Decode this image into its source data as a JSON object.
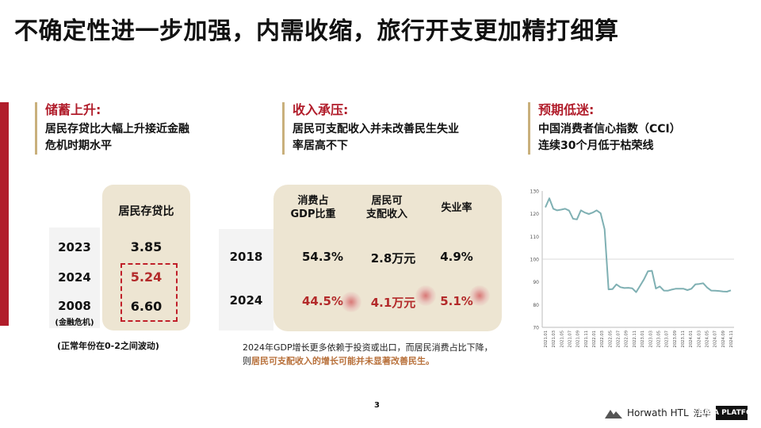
{
  "title": "不确定性进一步加强，内需收缩，旅行开支更加精打细算",
  "sections": [
    {
      "title": "储蓄上升:",
      "body": [
        "居民存贷比大幅上升接近金融",
        "危机时期水平"
      ],
      "table": {
        "column": "居民存贷比",
        "rows": [
          {
            "year": "2023",
            "value": "3.85"
          },
          {
            "year": "2024",
            "value": "5.24"
          },
          {
            "year": "2008",
            "sub": "(金融危机)",
            "value": "6.60"
          }
        ]
      },
      "note": "(正常年份在0-2之间波动)"
    },
    {
      "title": "收入承压:",
      "body": [
        "居民可支配收入并未改善民生失业",
        "率居高不下"
      ],
      "table": {
        "columns": [
          [
            "消费占",
            "GDP比重"
          ],
          [
            "居民可",
            "支配收入"
          ],
          [
            "失业率"
          ]
        ],
        "rows": [
          {
            "year": "2018",
            "values": [
              "54.3%",
              "2.8万元",
              "4.9%"
            ]
          },
          {
            "year": "2024",
            "values": [
              "44.5%",
              "4.1万元",
              "5.1%"
            ]
          }
        ]
      },
      "note_lead": "2024年GDP增长更多依赖于投资或出口，而居民消费占比下降，则",
      "note_highlight": "居民可支配收入的增长可能并未显著改善民生。"
    },
    {
      "title": "预期低迷:",
      "body": [
        "中国消费者信心指数（CCI）",
        "连续30个月低于枯荣线"
      ]
    }
  ],
  "chart_data": {
    "type": "line",
    "title": "",
    "xlabel": "",
    "ylabel": "",
    "ylim": [
      70,
      130
    ],
    "yticks": [
      "70",
      "80",
      "90",
      "100",
      "110",
      "120",
      "130"
    ],
    "reference_line": 100,
    "x_tick_labels": [
      "2021.01",
      "2021.03",
      "2021.05",
      "2021.07",
      "2021.09",
      "2021.11",
      "2022.01",
      "2022.03",
      "2022.05",
      "2022.07",
      "2022.09",
      "2022.11",
      "2023.01",
      "2023.03",
      "2023.05",
      "2023.07",
      "2023.09",
      "2023.11",
      "2024.01",
      "2024.03",
      "2024.05",
      "2024.07",
      "2024.09",
      "2024.11"
    ],
    "series": [
      {
        "color": "#7fb0b3",
        "values": [
          122.8,
          126.8,
          122.2,
          121.5,
          121.8,
          122.2,
          121.4,
          117.8,
          117.5,
          121.5,
          120.5,
          119.9,
          120.5,
          121.5,
          120.2,
          113.2,
          86.7,
          86.8,
          88.9,
          87.7,
          87.3,
          87.4,
          87.2,
          85.5,
          88.3,
          91.2,
          94.7,
          94.9,
          87.1,
          88.0,
          86.2,
          86.1,
          86.6,
          87.0,
          87.0,
          87.0,
          86.4,
          87.0,
          88.9,
          89.1,
          89.4,
          87.5,
          86.2,
          86.1,
          86.0,
          85.8,
          85.7,
          86.3
        ]
      }
    ]
  },
  "page_number": "3",
  "logo": {
    "text": "Horwath HTL",
    "cn": "浩华",
    "mark": "DATA PLATFORM"
  }
}
